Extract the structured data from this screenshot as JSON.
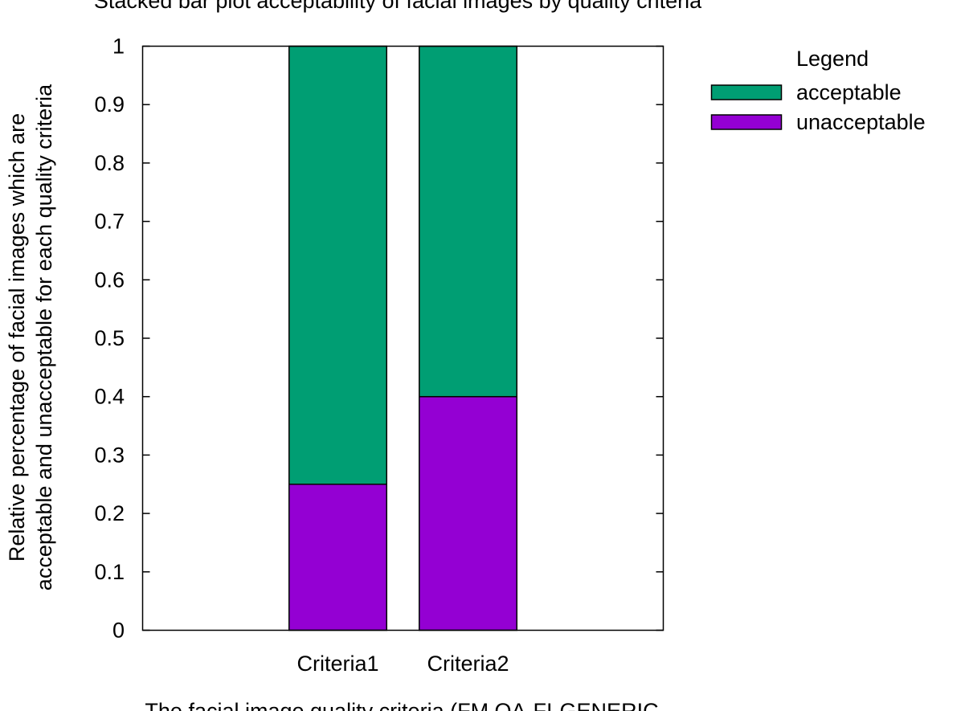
{
  "chart_data": {
    "type": "bar",
    "stacked": true,
    "title": "Stacked bar plot acceptability of facial images by quality criteria",
    "xlabel": "The facial image quality criteria (FM QA-FI-GENERIC",
    "ylabel_lines": [
      "Relative percentage of facial images which are",
      "acceptable and unacceptable for each quality criteria"
    ],
    "categories": [
      "Criteria1",
      "Criteria2"
    ],
    "series": [
      {
        "name": "unacceptable",
        "color": "#9400d3",
        "values": [
          0.25,
          0.4
        ]
      },
      {
        "name": "acceptable",
        "color": "#009e73",
        "values": [
          0.75,
          0.6
        ]
      }
    ],
    "ylim": [
      0,
      1
    ],
    "yticks": [
      "0",
      "0.1",
      "0.2",
      "0.3",
      "0.4",
      "0.5",
      "0.6",
      "0.7",
      "0.8",
      "0.9",
      "1"
    ],
    "legend": {
      "title": "Legend",
      "order": [
        "acceptable",
        "unacceptable"
      ],
      "placement": "outside-top-right"
    },
    "grid": false
  }
}
